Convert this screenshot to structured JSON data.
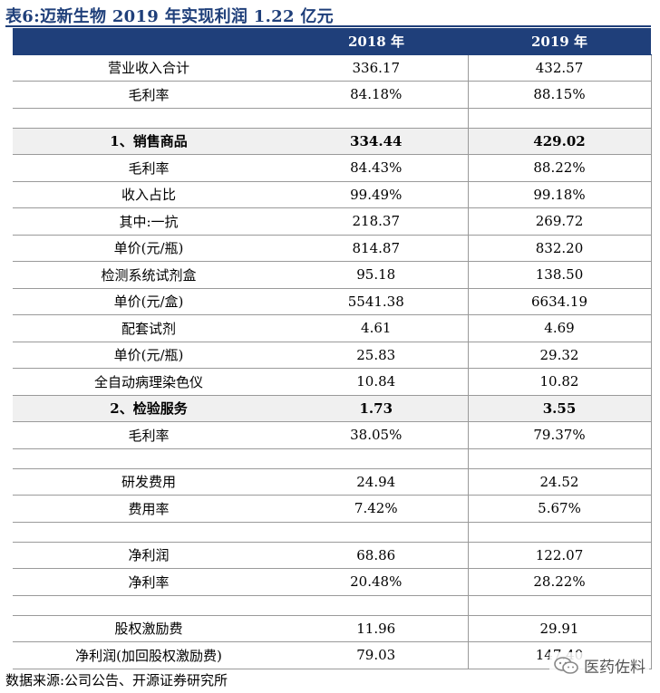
{
  "title": "表6:迈新生物 2019 年实现利润 1.22 亿元",
  "columns": [
    "",
    "2018 年",
    "2019 年"
  ],
  "rows": [
    {
      "type": "data",
      "label": "营业收入合计",
      "v2018": "336.17",
      "v2019": "432.57"
    },
    {
      "type": "data",
      "label": "毛利率",
      "v2018": "84.18%",
      "v2019": "88.15%"
    },
    {
      "type": "spacer"
    },
    {
      "type": "section",
      "label": "1、销售商品",
      "v2018": "334.44",
      "v2019": "429.02"
    },
    {
      "type": "data",
      "label": "毛利率",
      "v2018": "84.43%",
      "v2019": "88.22%"
    },
    {
      "type": "data",
      "label": "收入占比",
      "v2018": "99.49%",
      "v2019": "99.18%"
    },
    {
      "type": "data",
      "label": "其中:一抗",
      "v2018": "218.37",
      "v2019": "269.72"
    },
    {
      "type": "data",
      "label": "单价(元/瓶)",
      "v2018": "814.87",
      "v2019": "832.20"
    },
    {
      "type": "data",
      "label": "检测系统试剂盒",
      "v2018": "95.18",
      "v2019": "138.50"
    },
    {
      "type": "data",
      "label": "单价(元/盒)",
      "v2018": "5541.38",
      "v2019": "6634.19"
    },
    {
      "type": "data",
      "label": "配套试剂",
      "v2018": "4.61",
      "v2019": "4.69"
    },
    {
      "type": "data",
      "label": "单价(元/瓶)",
      "v2018": "25.83",
      "v2019": "29.32"
    },
    {
      "type": "data",
      "label": "全自动病理染色仪",
      "v2018": "10.84",
      "v2019": "10.82"
    },
    {
      "type": "section",
      "label": "2、检验服务",
      "v2018": "1.73",
      "v2019": "3.55"
    },
    {
      "type": "data",
      "label": "毛利率",
      "v2018": "38.05%",
      "v2019": "79.37%"
    },
    {
      "type": "spacer"
    },
    {
      "type": "data",
      "label": "研发费用",
      "v2018": "24.94",
      "v2019": "24.52"
    },
    {
      "type": "data",
      "label": "费用率",
      "v2018": "7.42%",
      "v2019": "5.67%"
    },
    {
      "type": "spacer"
    },
    {
      "type": "data",
      "label": "净利润",
      "v2018": "68.86",
      "v2019": "122.07"
    },
    {
      "type": "data",
      "label": "净利率",
      "v2018": "20.48%",
      "v2019": "28.22%"
    },
    {
      "type": "spacer"
    },
    {
      "type": "data",
      "label": "股权激励费",
      "v2018": "11.96",
      "v2019": "29.91"
    },
    {
      "type": "data",
      "label": "净利润(加回股权激励费)",
      "v2018": "79.03",
      "v2019": "147.40"
    }
  ],
  "source": "数据来源:公司公告、开源证券研究所",
  "watermark": {
    "text": "医药佐料",
    "icon": "wechat-icon"
  },
  "colors": {
    "header_bg": "#1f3f7a",
    "section_bg": "#f0f0f0",
    "title": "#1f3f7a"
  }
}
